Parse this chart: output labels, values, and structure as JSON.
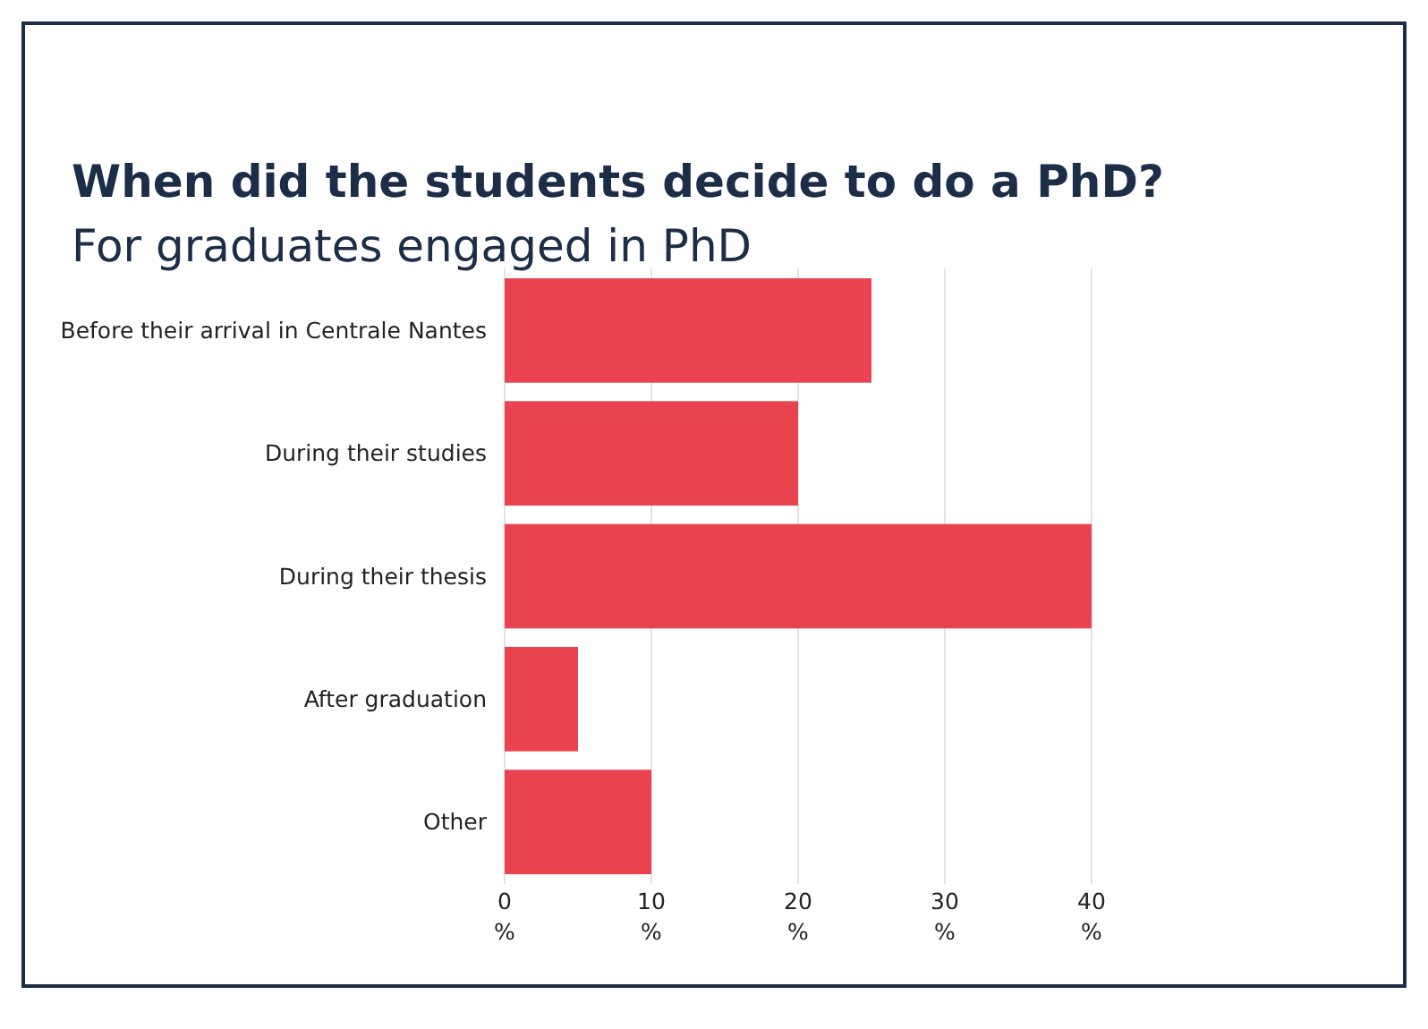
{
  "chart_data": {
    "type": "bar",
    "orientation": "horizontal",
    "title": "When did the students decide to do a PhD?",
    "subtitle": "For graduates engaged in PhD",
    "categories": [
      "Before their arrival in Centrale Nantes",
      "During their studies",
      "During their thesis",
      "After graduation",
      "Other"
    ],
    "values": [
      25,
      20,
      40,
      5,
      10
    ],
    "color": "#e8434f",
    "xlim": [
      0,
      40
    ],
    "xticks": [
      {
        "value": 0,
        "label": "0 %"
      },
      {
        "value": 10,
        "label": "10 %"
      },
      {
        "value": 20,
        "label": "20 %"
      },
      {
        "value": 30,
        "label": "30 %"
      },
      {
        "value": 40,
        "label": "40 %"
      }
    ],
    "grid": "x"
  }
}
